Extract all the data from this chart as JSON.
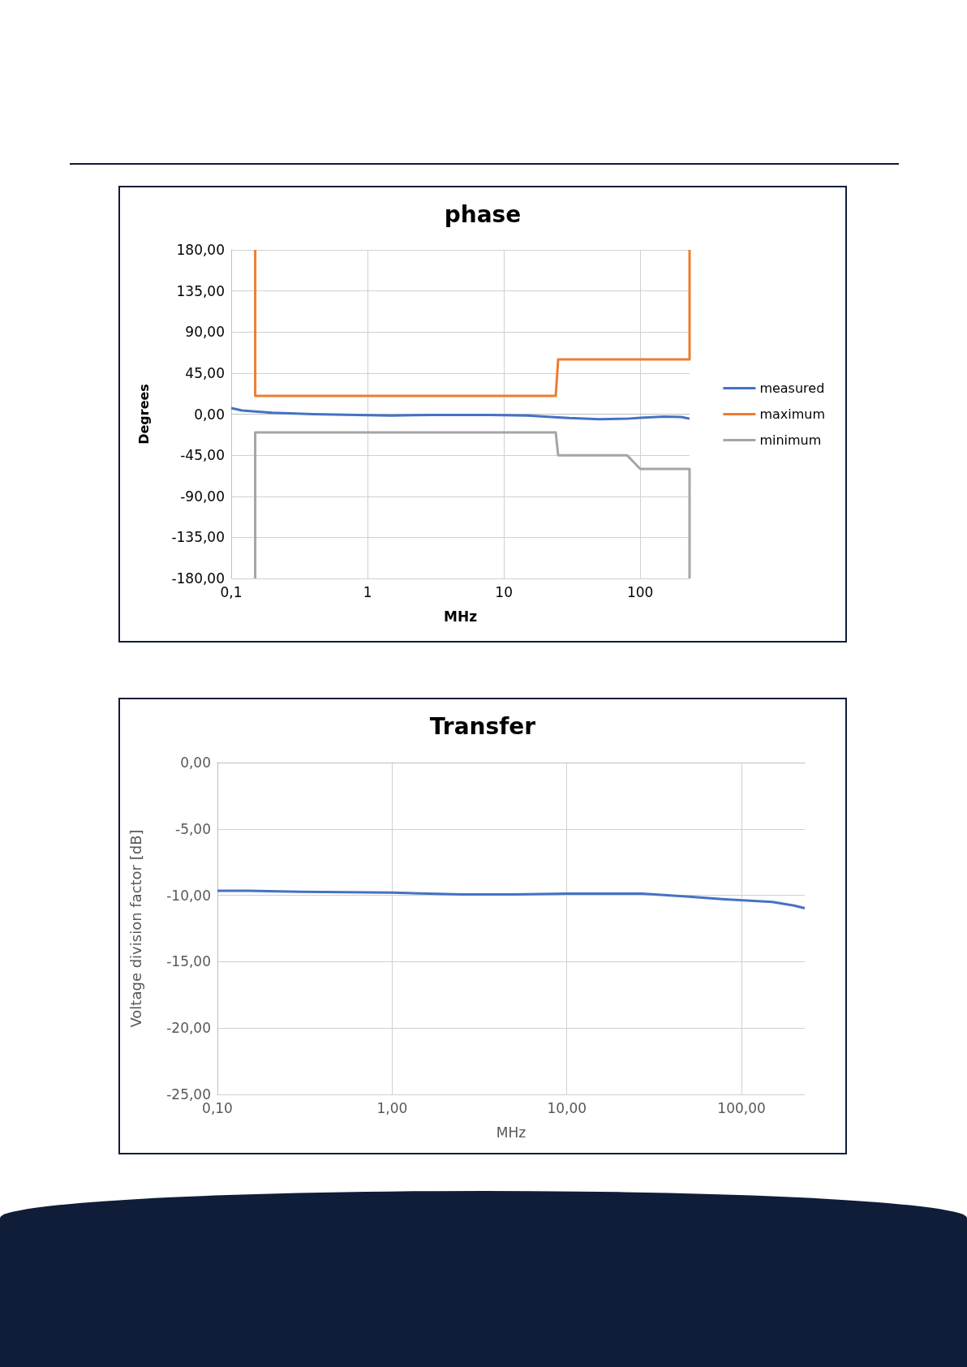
{
  "chart_data": [
    {
      "type": "line",
      "title": "phase",
      "xlabel": "MHz",
      "ylabel": "Degrees",
      "log": "x",
      "grid": true,
      "legend": "right",
      "marker": "none",
      "xlim": [
        0.1,
        230
      ],
      "xticks": [
        {
          "value": 0.1,
          "label": "0,1"
        },
        {
          "value": 1,
          "label": "1"
        },
        {
          "value": 10,
          "label": "10"
        },
        {
          "value": 100,
          "label": "100"
        }
      ],
      "ylim": [
        -180,
        180
      ],
      "yticks": [
        {
          "value": -180,
          "label": "-180,00"
        },
        {
          "value": -135,
          "label": "-135,00"
        },
        {
          "value": -90,
          "label": "-90,00"
        },
        {
          "value": -45,
          "label": "-45,00"
        },
        {
          "value": 0,
          "label": "0,00"
        },
        {
          "value": 45,
          "label": "45,00"
        },
        {
          "value": 90,
          "label": "90,00"
        },
        {
          "value": 135,
          "label": "135,00"
        },
        {
          "value": 180,
          "label": "180,00"
        }
      ],
      "series": [
        {
          "name": "measured",
          "color": "#4472c4",
          "x": [
            0.1,
            0.12,
            0.2,
            0.4,
            1,
            1.5,
            3,
            8,
            15,
            25,
            30,
            50,
            80,
            100,
            150,
            200,
            230
          ],
          "values": [
            6.6,
            4,
            1.5,
            0,
            -1.2,
            -1.5,
            -0.8,
            -0.8,
            -1.5,
            -3.5,
            -4.3,
            -5.5,
            -5,
            -4,
            -2.7,
            -3.1,
            -5
          ]
        },
        {
          "name": "maximum",
          "color": "#ed7d31",
          "x": [
            0.15,
            0.15,
            24,
            25,
            230,
            230
          ],
          "values": [
            180,
            20,
            20,
            60,
            60,
            180
          ]
        },
        {
          "name": "minimum",
          "color": "#a5a5a5",
          "x": [
            0.15,
            0.15,
            24,
            25,
            80,
            100,
            230,
            230
          ],
          "values": [
            -180,
            -20,
            -20,
            -45,
            -45,
            -60,
            -60,
            -180
          ]
        }
      ]
    },
    {
      "type": "line",
      "title": "Transfer",
      "xlabel": "MHz",
      "ylabel": "Voltage division factor [dB]",
      "log": "x",
      "grid": true,
      "marker": "none",
      "xlim": [
        0.1,
        230
      ],
      "xticks": [
        {
          "value": 0.1,
          "label": "0,10"
        },
        {
          "value": 1,
          "label": "1,00"
        },
        {
          "value": 10,
          "label": "10,00"
        },
        {
          "value": 100,
          "label": "100,00"
        }
      ],
      "ylim": [
        -25,
        0
      ],
      "yticks": [
        {
          "value": -25,
          "label": "-25,00"
        },
        {
          "value": -20,
          "label": "-20,00"
        },
        {
          "value": -15,
          "label": "-15,00"
        },
        {
          "value": -10,
          "label": "-10,00"
        },
        {
          "value": -5,
          "label": "-5,00"
        },
        {
          "value": 0,
          "label": "0,00"
        }
      ],
      "series": [
        {
          "color": "#4472c4",
          "x": [
            0.1,
            0.15,
            0.3,
            1,
            2.5,
            5,
            10,
            27,
            50,
            80,
            150,
            200,
            230
          ],
          "values": [
            -9.66,
            -9.66,
            -9.73,
            -9.8,
            -9.93,
            -9.93,
            -9.87,
            -9.87,
            -10.1,
            -10.3,
            -10.5,
            -10.77,
            -10.97
          ]
        }
      ]
    }
  ]
}
